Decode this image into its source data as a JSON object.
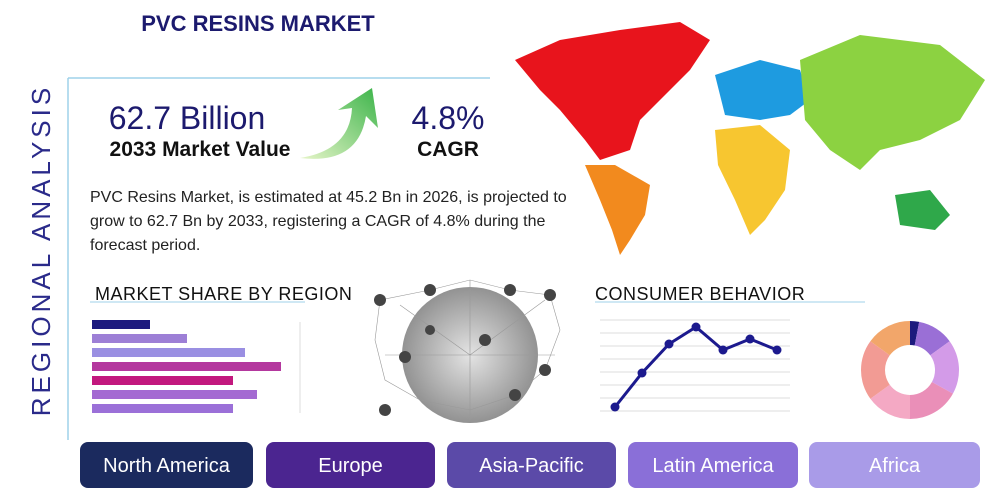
{
  "header": {
    "title": "PVC RESINS MARKET",
    "side_title": "REGIONAL ANALYSIS"
  },
  "stats": [
    {
      "value": "62.7 Billion",
      "label": "2033 Market Value"
    },
    {
      "value": "4.8%",
      "label": "CAGR"
    }
  ],
  "description": "PVC Resins Market, is estimated at 45.2 Bn in 2026, is projected to grow to 62.7 Bn by 2033, registering a CAGR of 4.8% during the forecast period.",
  "market_share": {
    "type": "bar",
    "title": "MARKET SHARE BY REGION",
    "xlim": [
      0,
      210
    ],
    "values": [
      58,
      95,
      153,
      189,
      141,
      165,
      141
    ],
    "colors": [
      "#1c1a7e",
      "#9d7fd6",
      "#9a8fe2",
      "#b4389e",
      "#c2187e",
      "#a46ad2",
      "#9b70d8"
    ]
  },
  "consumer_behavior": {
    "type": "line",
    "title": "CONSUMER BEHAVIOR",
    "ylim": [
      0,
      100
    ],
    "color": "#1c1a8e",
    "values": [
      13,
      47,
      76,
      93,
      70,
      81,
      70
    ]
  },
  "donut": {
    "type": "pie",
    "values": [
      3,
      12,
      18,
      17,
      15,
      20,
      15
    ],
    "colors": [
      "#1c1a7e",
      "#9a6fd6",
      "#d39be8",
      "#ea8fb8",
      "#f4a9c4",
      "#f29b94",
      "#f2a66a"
    ]
  },
  "regions": [
    "North America",
    "Europe",
    "Asia-Pacific",
    "Latin America",
    "Africa"
  ]
}
